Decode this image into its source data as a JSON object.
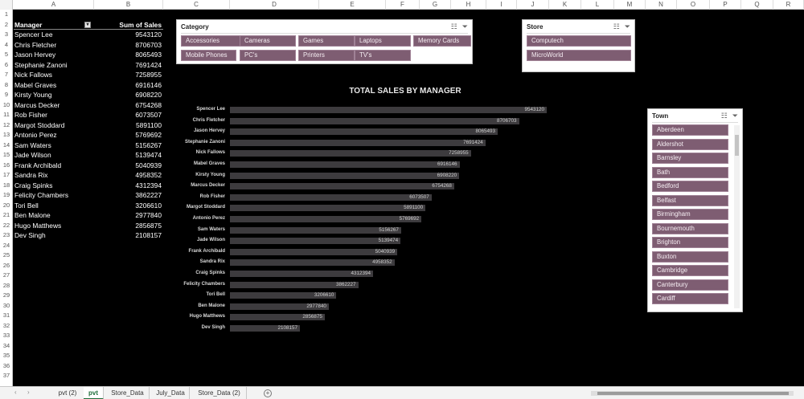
{
  "columns": [
    "A",
    "B",
    "C",
    "D",
    "E",
    "F",
    "G",
    "H",
    "I",
    "J",
    "K",
    "L",
    "M",
    "N",
    "O",
    "P",
    "Q",
    "R"
  ],
  "rows": [
    "1",
    "2",
    "3",
    "4",
    "5",
    "6",
    "7",
    "8",
    "9",
    "10",
    "11",
    "12",
    "13",
    "14",
    "15",
    "16",
    "17",
    "18",
    "19",
    "20",
    "21",
    "22",
    "23",
    "24",
    "25",
    "26",
    "27",
    "28",
    "29",
    "30",
    "31",
    "32",
    "33",
    "34",
    "35",
    "36",
    "37"
  ],
  "pivot": {
    "header_manager": "Manager",
    "header_sales": "Sum of Sales",
    "filter_icon": "filter-dropdown-icon",
    "rows": [
      {
        "manager": "Spencer Lee",
        "sales": "9543120"
      },
      {
        "manager": "Chris Fletcher",
        "sales": "8706703"
      },
      {
        "manager": "Jason Hervey",
        "sales": "8065493"
      },
      {
        "manager": "Stephanie Zanoni",
        "sales": "7691424"
      },
      {
        "manager": "Nick Fallows",
        "sales": "7258955"
      },
      {
        "manager": "Mabel Graves",
        "sales": "6916146"
      },
      {
        "manager": "Kirsty Young",
        "sales": "6908220"
      },
      {
        "manager": "Marcus Decker",
        "sales": "6754268"
      },
      {
        "manager": "Rob Fisher",
        "sales": "6073507"
      },
      {
        "manager": "Margot Stoddard",
        "sales": "5891100"
      },
      {
        "manager": "Antonio Perez",
        "sales": "5769692"
      },
      {
        "manager": "Sam Waters",
        "sales": "5156267"
      },
      {
        "manager": "Jade Wilson",
        "sales": "5139474"
      },
      {
        "manager": "Frank Archibald",
        "sales": "5040939"
      },
      {
        "manager": "Sandra Rix",
        "sales": "4958352"
      },
      {
        "manager": "Craig Spinks",
        "sales": "4312394"
      },
      {
        "manager": "Felicity Chambers",
        "sales": "3862227"
      },
      {
        "manager": "Tori Bell",
        "sales": "3206610"
      },
      {
        "manager": "Ben Malone",
        "sales": "2977840"
      },
      {
        "manager": "Hugo Matthews",
        "sales": "2856875"
      },
      {
        "manager": "Dev Singh",
        "sales": "2108157"
      }
    ]
  },
  "slicer_icons": {
    "multiselect": "multi-select-icon",
    "clear": "clear-filter-icon"
  },
  "category_slicer": {
    "title": "Category",
    "items": [
      "Accessories",
      "Cameras",
      "Games",
      "Laptops",
      "Memory Cards",
      "Mobile Phones",
      "PC's",
      "Printers",
      "TV's"
    ]
  },
  "store_slicer": {
    "title": "Store",
    "items": [
      "Computech",
      "MicroWorld"
    ]
  },
  "town_slicer": {
    "title": "Town",
    "items": [
      "Aberdeen",
      "Aldershot",
      "Barnsley",
      "Bath",
      "Bedford",
      "Belfast",
      "Birmingham",
      "Bournemouth",
      "Brighton",
      "Buxton",
      "Cambridge",
      "Canterbury",
      "Cardiff"
    ]
  },
  "chart_data": {
    "type": "bar",
    "orientation": "horizontal",
    "title": "TOTAL SALES BY MANAGER",
    "categories": [
      "Spencer Lee",
      "Chris Fletcher",
      "Jason Hervey",
      "Stephanie Zanoni",
      "Nick Fallows",
      "Mabel Graves",
      "Kirsty Young",
      "Marcus Decker",
      "Rob Fisher",
      "Margot Stoddard",
      "Antonio Perez",
      "Sam Waters",
      "Jade Wilson",
      "Frank Archibald",
      "Sandra Rix",
      "Craig Spinks",
      "Felicity Chambers",
      "Tori Bell",
      "Ben Malone",
      "Hugo Matthews",
      "Dev Singh"
    ],
    "values": [
      9543120,
      8706703,
      8065493,
      7691424,
      7258955,
      6916146,
      6908220,
      6754268,
      6073507,
      5891100,
      5769692,
      5156267,
      5139474,
      5040939,
      4958352,
      4312394,
      3862227,
      3206610,
      2977840,
      2856875,
      2108157
    ],
    "data_labels": true,
    "xlabel": "",
    "ylabel": "",
    "grid": false,
    "colors": {
      "bar": "#3d3b3e",
      "background": "#000000",
      "label": "#d9d9d9"
    }
  },
  "tabs": {
    "items": [
      "pvt (2)",
      "pvt",
      "Store_Data",
      "July_Data",
      "Store_Data (2)"
    ],
    "active": "pvt",
    "add_label": "+",
    "nav_prev": "‹",
    "nav_next": "›"
  },
  "colors": {
    "slicer_item": "#7e5d72",
    "active_tab": "#1e6e3a"
  }
}
